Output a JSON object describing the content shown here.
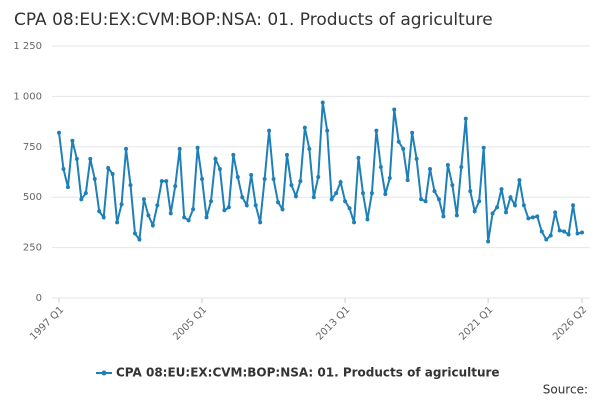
{
  "chart_data": {
    "type": "line",
    "title": "CPA 08:EU:EX:CVM:BOP:NSA: 01. Products of agriculture",
    "source": "Source:",
    "categories": [
      "1997 Q1",
      null,
      null,
      null,
      null,
      null,
      null,
      null,
      null,
      null,
      null,
      null,
      null,
      null,
      null,
      null,
      null,
      null,
      null,
      null,
      null,
      null,
      null,
      null,
      null,
      null,
      null,
      null,
      null,
      null,
      null,
      null,
      "2005 Q1",
      null,
      null,
      null,
      null,
      null,
      null,
      null,
      null,
      null,
      null,
      null,
      null,
      null,
      null,
      null,
      null,
      null,
      null,
      null,
      null,
      null,
      null,
      null,
      null,
      null,
      null,
      null,
      null,
      null,
      null,
      null,
      "2013 Q1",
      null,
      null,
      null,
      null,
      null,
      null,
      null,
      null,
      null,
      null,
      null,
      null,
      null,
      null,
      null,
      null,
      null,
      null,
      null,
      null,
      null,
      null,
      null,
      null,
      null,
      null,
      null,
      null,
      null,
      null,
      null,
      "2021 Q1",
      null,
      null,
      null,
      null,
      null,
      null,
      null,
      null,
      null,
      null,
      null,
      null,
      null,
      null,
      null,
      null,
      null,
      null,
      null,
      null,
      "2026 Q2"
    ],
    "series": [
      {
        "name": "CPA 08:EU:EX:CVM:BOP:NSA: 01. Products of agriculture",
        "color": "#1f80b8",
        "values": [
          820,
          640,
          550,
          780,
          690,
          490,
          520,
          690,
          590,
          430,
          400,
          645,
          615,
          375,
          465,
          740,
          560,
          320,
          290,
          490,
          410,
          360,
          460,
          580,
          580,
          420,
          555,
          740,
          400,
          385,
          440,
          745,
          590,
          400,
          480,
          690,
          640,
          435,
          450,
          710,
          600,
          500,
          460,
          610,
          460,
          375,
          590,
          830,
          590,
          475,
          440,
          710,
          560,
          505,
          580,
          845,
          740,
          500,
          600,
          970,
          830,
          490,
          520,
          575,
          480,
          445,
          375,
          695,
          520,
          390,
          520,
          830,
          650,
          515,
          595,
          935,
          775,
          740,
          585,
          820,
          690,
          490,
          480,
          640,
          530,
          490,
          405,
          660,
          560,
          410,
          650,
          890,
          530,
          430,
          480,
          745,
          280,
          420,
          450,
          540,
          425,
          500,
          460,
          585,
          460,
          395,
          400,
          405,
          330,
          290,
          310,
          425,
          335,
          330,
          315,
          460,
          320,
          325
        ]
      }
    ],
    "ylim": [
      0,
      1250
    ],
    "yticks": [
      0,
      250,
      500,
      750,
      {
        "value": 1000,
        "label": "1 000"
      },
      {
        "value": 1250,
        "label": "1 250"
      }
    ],
    "grid": true
  }
}
